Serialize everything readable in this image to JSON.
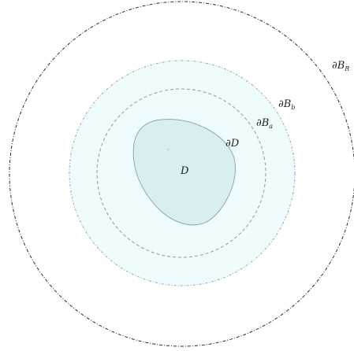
{
  "labels": {
    "region": "D",
    "boundary_partial": "∂",
    "boundary_region": "D",
    "ba_base": "∂B",
    "ba_sub": "a",
    "bb_base": "∂B",
    "bb_sub": "b",
    "br_base": "∂B",
    "br_sub": "R"
  },
  "colors": {
    "region_fill": "#d9eef1",
    "region_stroke": "#8fa9b0",
    "annulus_fill": "#eefcfd",
    "ball_b_stroke": "#9aa6a8",
    "ball_a_stroke": "#8f9a9c",
    "ball_r_stroke": "#2b2b2b"
  }
}
